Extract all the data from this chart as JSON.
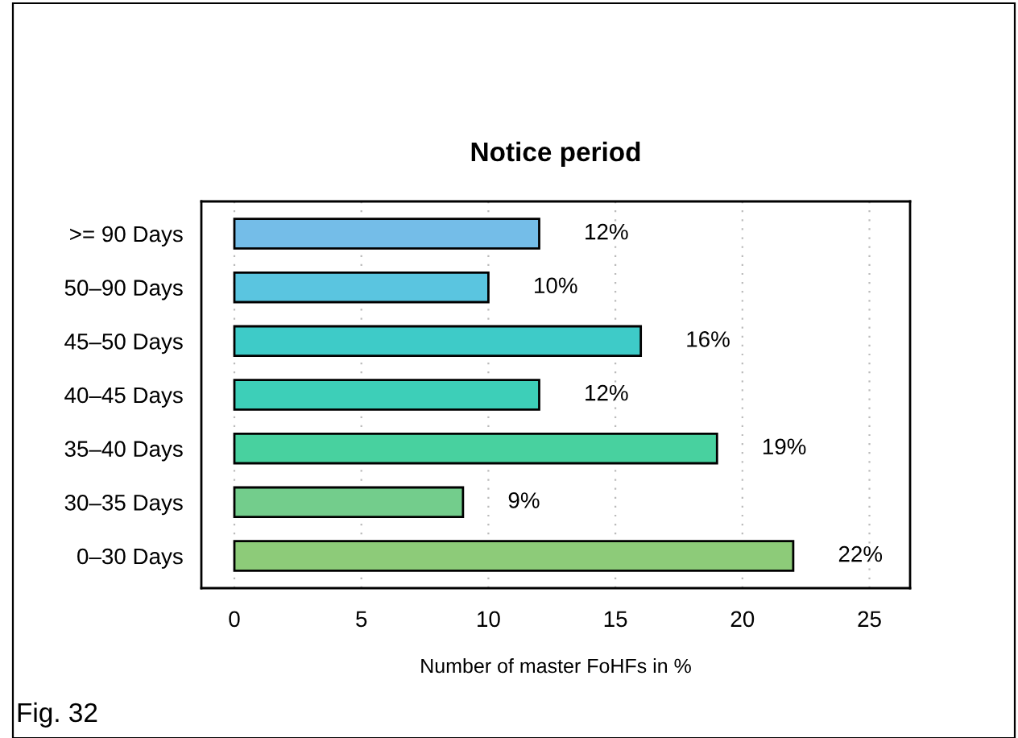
{
  "chart_data": {
    "type": "bar",
    "orientation": "horizontal",
    "title": "Notice period",
    "xlabel": "Number of master FoHFs in %",
    "categories": [
      ">= 90 Days",
      "50–90 Days",
      "45–50 Days",
      "40–45 Days",
      "35–40 Days",
      "30–35 Days",
      "0–30 Days"
    ],
    "values": [
      12,
      10,
      16,
      12,
      19,
      9,
      22
    ],
    "colors": [
      "#74bde8",
      "#5ac5e0",
      "#3ecbc8",
      "#3dcfb8",
      "#48d19f",
      "#73cd8c",
      "#8dcb79"
    ],
    "value_labels": [
      "12%",
      "10%",
      "16%",
      "12%",
      "19%",
      "9%",
      "22%"
    ],
    "xlim": [
      -1.3,
      26.6
    ],
    "xticks": [
      0,
      5,
      10,
      15,
      20,
      25
    ],
    "grid": "x",
    "legend": false,
    "annotations": [
      "Fig. 32"
    ]
  }
}
